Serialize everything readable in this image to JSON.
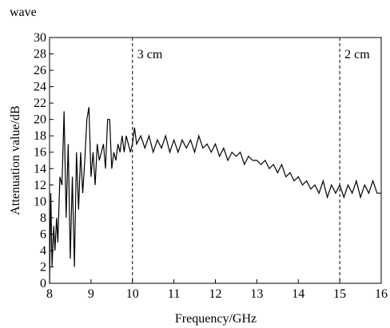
{
  "caption": "wave",
  "chart_data": {
    "type": "line",
    "xlabel": "Frequency/GHz",
    "ylabel": "Attenuation value/dB",
    "xlim": [
      8,
      16
    ],
    "ylim": [
      0,
      30
    ],
    "xticks": [
      8,
      9,
      10,
      11,
      12,
      13,
      14,
      15,
      16
    ],
    "yticks": [
      0,
      2,
      4,
      6,
      8,
      10,
      12,
      14,
      16,
      18,
      20,
      22,
      24,
      26,
      28,
      30
    ],
    "vlines": [
      {
        "x": 10,
        "label": "3 cm"
      },
      {
        "x": 15,
        "label": "2 cm"
      }
    ],
    "series": [
      {
        "color": "#000000",
        "x": [
          8.0,
          8.03,
          8.06,
          8.1,
          8.13,
          8.17,
          8.2,
          8.25,
          8.3,
          8.35,
          8.4,
          8.45,
          8.5,
          8.55,
          8.6,
          8.65,
          8.7,
          8.75,
          8.8,
          8.85,
          8.9,
          8.95,
          9.0,
          9.05,
          9.1,
          9.15,
          9.2,
          9.3,
          9.35,
          9.4,
          9.45,
          9.5,
          9.55,
          9.6,
          9.65,
          9.7,
          9.75,
          9.8,
          9.85,
          9.9,
          9.95,
          10.0,
          10.05,
          10.1,
          10.2,
          10.3,
          10.4,
          10.5,
          10.6,
          10.7,
          10.8,
          10.9,
          11.0,
          11.1,
          11.2,
          11.3,
          11.4,
          11.5,
          11.6,
          11.7,
          11.8,
          11.9,
          12.0,
          12.1,
          12.2,
          12.3,
          12.4,
          12.5,
          12.6,
          12.7,
          12.8,
          12.9,
          13.0,
          13.1,
          13.2,
          13.3,
          13.4,
          13.5,
          13.6,
          13.7,
          13.8,
          13.9,
          14.0,
          14.1,
          14.2,
          14.3,
          14.4,
          14.5,
          14.6,
          14.7,
          14.8,
          14.9,
          15.0,
          15.1,
          15.2,
          15.3,
          15.4,
          15.5,
          15.6,
          15.7,
          15.8,
          15.9,
          16.0
        ],
        "values": [
          0,
          11,
          2,
          7,
          4,
          8,
          5,
          13,
          12,
          21,
          8,
          17,
          3,
          13,
          2,
          16,
          9,
          16,
          11,
          15,
          20,
          21.5,
          13,
          16,
          12,
          17,
          15,
          17,
          14,
          20,
          20,
          14,
          16,
          15,
          17,
          16,
          18,
          16,
          18,
          17,
          16,
          17,
          19,
          17,
          18,
          16.5,
          18,
          16,
          17.5,
          16.5,
          18,
          16,
          17.5,
          16,
          17.5,
          16.5,
          17.5,
          16,
          18,
          16.5,
          17,
          16,
          17,
          15.5,
          16.5,
          15,
          16,
          15.5,
          16,
          14.5,
          15.5,
          15,
          15,
          14.5,
          15,
          14,
          14.5,
          13.5,
          14.5,
          13,
          13.5,
          12.5,
          13,
          12,
          12.5,
          11.5,
          12,
          11,
          12.5,
          10.5,
          12,
          11,
          12,
          10.5,
          12,
          11,
          12.5,
          10.5,
          12,
          11,
          12.5,
          11,
          11
        ]
      }
    ]
  }
}
